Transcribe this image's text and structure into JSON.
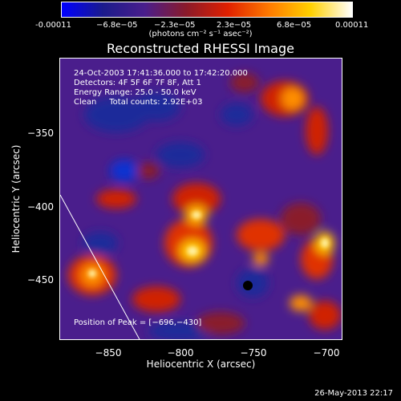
{
  "colorbar": {
    "colors": [
      "#0000ff",
      "#1b1b8c",
      "#4a1e8c",
      "#8a1a2a",
      "#e02000",
      "#ff7a00",
      "#ffd000",
      "#ffffff"
    ],
    "ticks": [
      "-0.00011",
      "−6.8e−05",
      "−2.3e−05",
      "2.3e−05",
      "6.8e−05",
      "0.00011"
    ],
    "units": "(photons cm⁻² s⁻¹ asec⁻²)"
  },
  "title": "Reconstructed RHESSI Image",
  "info": {
    "line1": "24-Oct-2003 17:41:36.000 to 17:42:20.000",
    "line2": "Detectors: 4F 5F 6F 7F 8F, Att 1",
    "line3": "Energy Range: 25.0 - 50.0 keV",
    "line4": "Clean     Total counts: 2.92E+03",
    "peak": "Position of Peak = [−696,−430]"
  },
  "axes": {
    "xlabel": "Heliocentric X (arcsec)",
    "ylabel": "Heliocentric Y (arcsec)",
    "xticks": [
      "−850",
      "−800",
      "−750",
      "−700"
    ],
    "yticks": [
      "−350",
      "−400",
      "−450"
    ]
  },
  "timestamp": "26-May-2013 22:17"
}
